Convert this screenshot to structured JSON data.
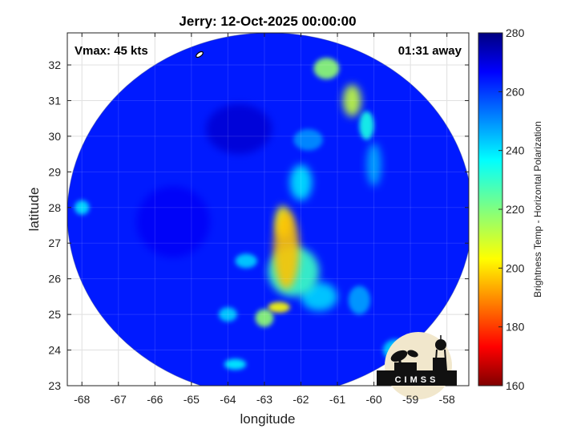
{
  "chart_data": {
    "type": "heatmap",
    "title": "Jerry: 12-Oct-2025 00:00:00",
    "xlabel": "longitude",
    "ylabel": "latitude",
    "xlim": [
      -68.4,
      -57.4
    ],
    "ylim": [
      23.0,
      32.9
    ],
    "xticks": [
      -68,
      -67,
      -66,
      -65,
      -64,
      -63,
      -62,
      -61,
      -60,
      -59,
      -58
    ],
    "yticks": [
      23,
      24,
      25,
      26,
      27,
      28,
      29,
      30,
      31,
      32
    ],
    "grid": true,
    "swath_center": [
      -62.85,
      27.8
    ],
    "swath_radius_deg": [
      5.55,
      5.1
    ],
    "vmax_text": "Vmax: 45 kts",
    "time_away_text": "01:31 away",
    "colorbar": {
      "label": "Brightness Temp - Horizontal Polarization",
      "range": [
        160,
        280
      ],
      "ticks": [
        160,
        180,
        200,
        220,
        240,
        260,
        280
      ],
      "colormap": "jet"
    },
    "background_value": 262,
    "features": [
      {
        "lon": -62.4,
        "lat": 26.8,
        "rx": 0.35,
        "ry": 1.1,
        "value": 198
      },
      {
        "lon": -62.5,
        "lat": 27.6,
        "rx": 0.2,
        "ry": 0.45,
        "value": 206
      },
      {
        "lon": -62.2,
        "lat": 26.2,
        "rx": 0.7,
        "ry": 0.7,
        "value": 228
      },
      {
        "lon": -62.6,
        "lat": 25.2,
        "rx": 0.3,
        "ry": 0.15,
        "value": 205
      },
      {
        "lon": -63.0,
        "lat": 24.9,
        "rx": 0.25,
        "ry": 0.25,
        "value": 218
      },
      {
        "lon": -62.0,
        "lat": 28.7,
        "rx": 0.3,
        "ry": 0.5,
        "value": 238
      },
      {
        "lon": -61.3,
        "lat": 31.9,
        "rx": 0.35,
        "ry": 0.3,
        "value": 218
      },
      {
        "lon": -60.6,
        "lat": 31.0,
        "rx": 0.25,
        "ry": 0.45,
        "value": 212
      },
      {
        "lon": -60.2,
        "lat": 30.3,
        "rx": 0.2,
        "ry": 0.4,
        "value": 232
      },
      {
        "lon": -60.0,
        "lat": 29.2,
        "rx": 0.2,
        "ry": 0.6,
        "value": 245
      },
      {
        "lon": -64.0,
        "lat": 25.0,
        "rx": 0.25,
        "ry": 0.2,
        "value": 240
      },
      {
        "lon": -63.8,
        "lat": 23.6,
        "rx": 0.3,
        "ry": 0.15,
        "value": 236
      },
      {
        "lon": -61.5,
        "lat": 25.5,
        "rx": 0.5,
        "ry": 0.4,
        "value": 240
      },
      {
        "lon": -63.5,
        "lat": 26.5,
        "rx": 0.3,
        "ry": 0.2,
        "value": 240
      },
      {
        "lon": -61.8,
        "lat": 29.9,
        "rx": 0.4,
        "ry": 0.3,
        "value": 248
      },
      {
        "lon": -59.4,
        "lat": 24.0,
        "rx": 0.35,
        "ry": 0.3,
        "value": 240
      },
      {
        "lon": -60.4,
        "lat": 25.4,
        "rx": 0.3,
        "ry": 0.4,
        "value": 246
      },
      {
        "lon": -68.0,
        "lat": 28.0,
        "rx": 0.2,
        "ry": 0.2,
        "value": 238
      },
      {
        "lon": -63.7,
        "lat": 30.2,
        "rx": 0.9,
        "ry": 0.7,
        "value": 270
      },
      {
        "lon": -65.5,
        "lat": 27.6,
        "rx": 1.0,
        "ry": 1.0,
        "value": 266
      }
    ],
    "logo_text": "CIMSS"
  }
}
